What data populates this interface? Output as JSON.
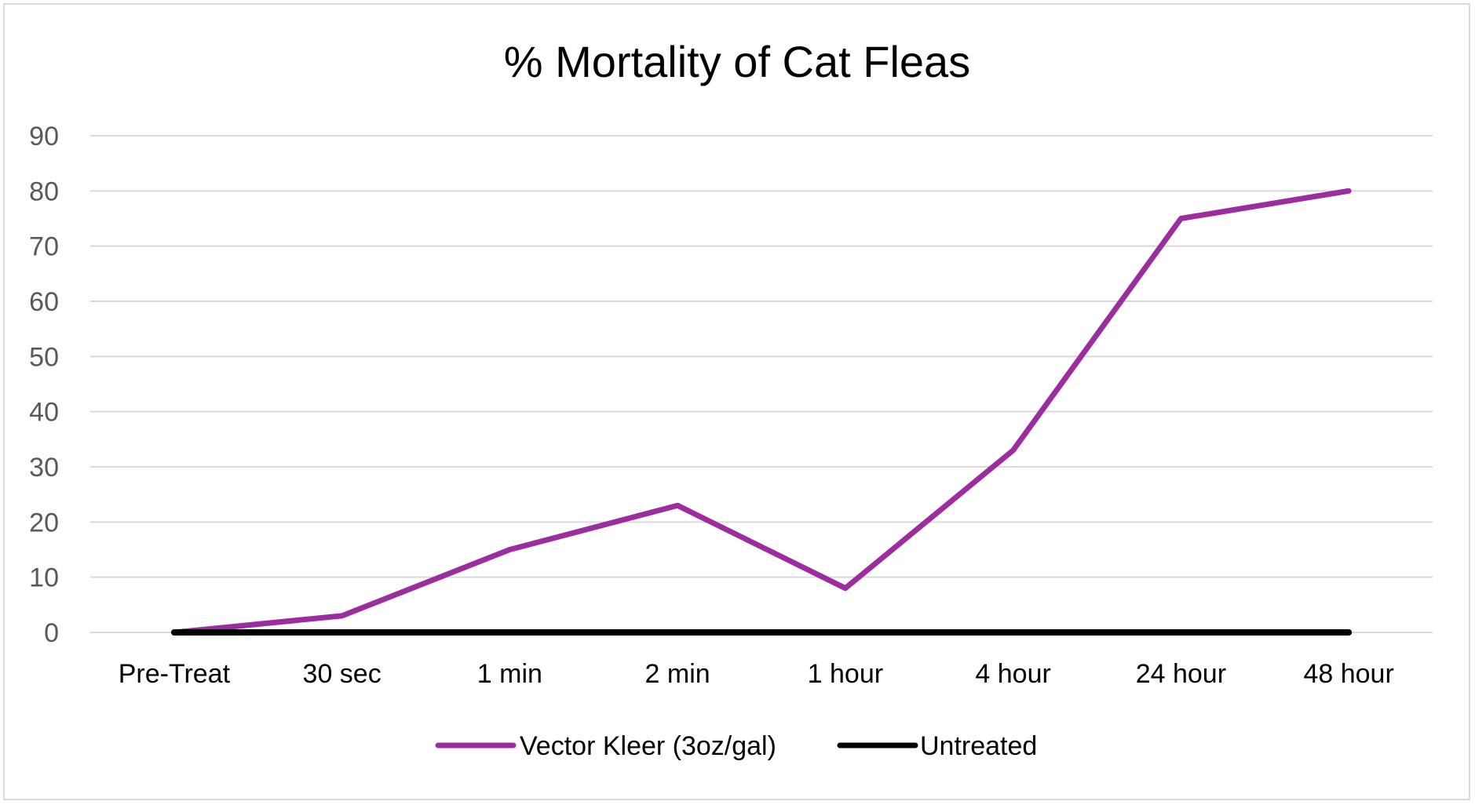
{
  "chart_data": {
    "type": "line",
    "title": "% Mortality of Cat Fleas",
    "xlabel": "",
    "ylabel": "",
    "categories": [
      "Pre-Treat",
      "30 sec",
      "1 min",
      "2 min",
      "1 hour",
      "4 hour",
      "24 hour",
      "48 hour"
    ],
    "series": [
      {
        "name": "Vector Kleer (3oz/gal)",
        "color": "#9b2d9f",
        "values": [
          0,
          3,
          15,
          23,
          8,
          33,
          75,
          80
        ]
      },
      {
        "name": "Untreated",
        "color": "#000000",
        "values": [
          0,
          0,
          0,
          0,
          0,
          0,
          0,
          0
        ]
      }
    ],
    "ylim": [
      0,
      90
    ],
    "yticks": [
      0,
      10,
      20,
      30,
      40,
      50,
      60,
      70,
      80,
      90
    ],
    "grid": true,
    "legend": "bottom"
  }
}
